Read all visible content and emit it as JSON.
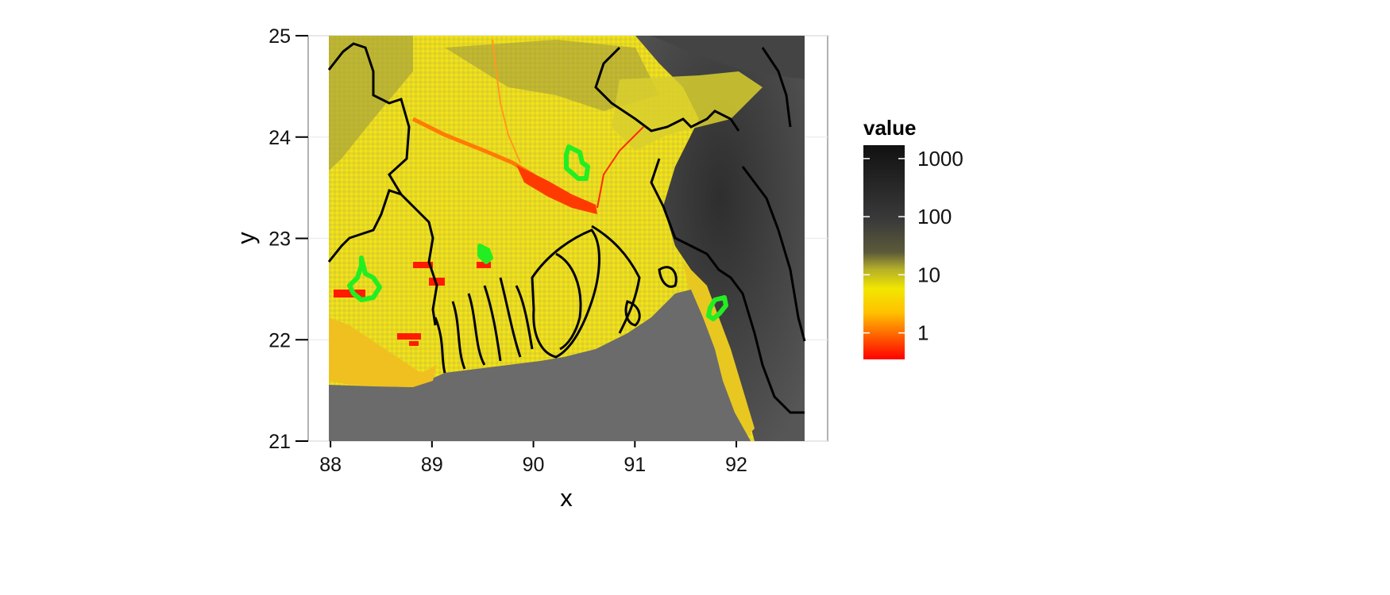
{
  "chart_data": {
    "type": "heatmap",
    "title": "",
    "xlabel": "x",
    "ylabel": "y",
    "xlim": [
      87.78,
      92.9
    ],
    "ylim": [
      21,
      25
    ],
    "x_ticks": [
      88,
      89,
      90,
      91,
      92
    ],
    "y_ticks": [
      21,
      22,
      23,
      24,
      25
    ],
    "grid": true,
    "legend": {
      "title": "value",
      "placement": "right",
      "scale": "log",
      "breaks": [
        1,
        10,
        100,
        1000
      ],
      "labels": [
        "1",
        "10",
        "100",
        "1000"
      ],
      "colors": [
        "#ff0000",
        "#ff8000",
        "#f2e600",
        "#8c8a2a",
        "#4a4a4a",
        "#1a1a1a"
      ]
    },
    "raster_extent": {
      "x": [
        88.0,
        92.7
      ],
      "y": [
        21,
        25
      ]
    },
    "highlighted_areas": [
      {
        "name": "area-near-88.4E-22.6N",
        "color": "#22ee22",
        "x": 88.35,
        "y": 22.55
      },
      {
        "name": "area-near-89.55E-22.85N",
        "color": "#22ee22",
        "x": 89.55,
        "y": 22.85
      },
      {
        "name": "area-near-90.45E-23.75N",
        "color": "#22ee22",
        "x": 90.45,
        "y": 23.75
      },
      {
        "name": "area-near-91.85E-22.3N",
        "color": "#22ee22",
        "x": 91.85,
        "y": 22.3
      }
    ],
    "colors": {
      "sea": "#6b6b6b",
      "land_low": "#f5e21a",
      "land_mid": "#c9c43a",
      "hills": "#3c3c3c",
      "river_orange": "#ff7a00",
      "river_red": "#ff1a00",
      "boundary": "#000000",
      "highlight": "#22ee22"
    }
  }
}
